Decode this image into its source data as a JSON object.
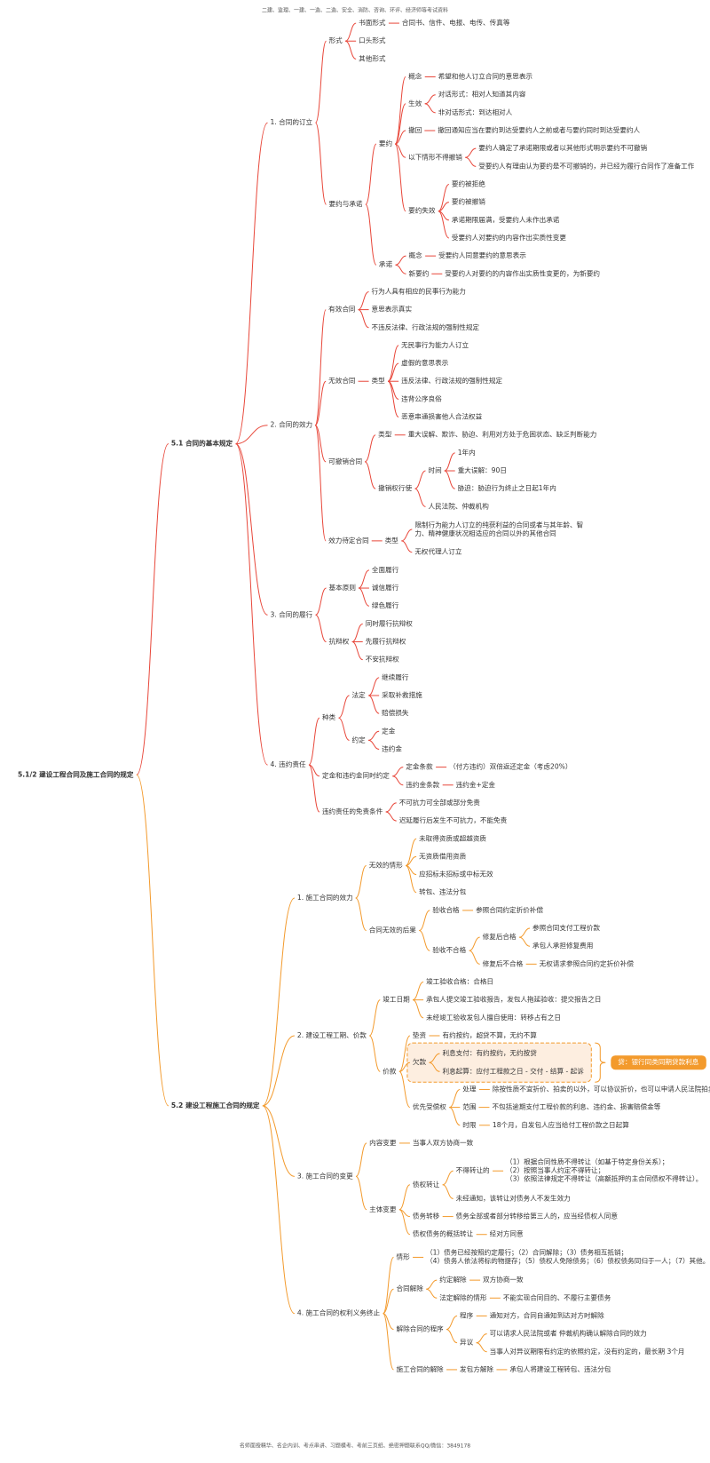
{
  "header": "二建、监理、一建、一造、二造、安全、消防、咨询、环评、经济师等考试资料",
  "footer": "名师面授精华、名企内训、考点串讲、习题模考、考前三页纸、绝密押题联系QQ/微信：3849178",
  "root": {
    "text": "5.1/2 建设工程合同及施工合同的规定",
    "children": [
      {
        "text": "5.1 合同的基本规定",
        "color": "#e8473a",
        "children": [
          {
            "text": "1. 合同的订立",
            "children": [
              {
                "text": "形式",
                "children": [
                  {
                    "text": "书面形式",
                    "children": [
                      {
                        "text": "合同书、信件、电报、电传、传真等"
                      }
                    ]
                  },
                  {
                    "text": "口头形式"
                  },
                  {
                    "text": "其他形式"
                  }
                ]
              },
              {
                "text": "要约与承诺",
                "children": [
                  {
                    "text": "要约",
                    "children": [
                      {
                        "text": "概念",
                        "children": [
                          {
                            "text": "希望和他人订立合同的意思表示"
                          }
                        ]
                      },
                      {
                        "text": "生效",
                        "children": [
                          {
                            "text": "对话形式：相对人知道其内容"
                          },
                          {
                            "text": "非对话形式：到达相对人"
                          }
                        ]
                      },
                      {
                        "text": "撤回",
                        "children": [
                          {
                            "text": "撤回通知应当在要约到达受要约人之前或者与要约同时到达受要约人"
                          }
                        ]
                      },
                      {
                        "text": "以下情形不得撤销",
                        "children": [
                          {
                            "text": "要约人确定了承诺期限或者以其他形式明示要约不可撤销"
                          },
                          {
                            "text": "受要约人有理由认为要约是不可撤销的，并已经为履行合同作了准备工作"
                          }
                        ]
                      },
                      {
                        "text": "要约失效",
                        "children": [
                          {
                            "text": "要约被拒绝"
                          },
                          {
                            "text": "要约被撤销"
                          },
                          {
                            "text": "承诺期限届满，受要约人未作出承诺"
                          },
                          {
                            "text": "受要约人对要约的内容作出实质性变更"
                          }
                        ]
                      }
                    ]
                  },
                  {
                    "text": "承诺",
                    "children": [
                      {
                        "text": "概念",
                        "children": [
                          {
                            "text": "受要约人同意要约的意思表示"
                          }
                        ]
                      },
                      {
                        "text": "新要约",
                        "children": [
                          {
                            "text": "受要约人对要约的内容作出实质性变更的，为新要约"
                          }
                        ]
                      }
                    ]
                  }
                ]
              }
            ]
          },
          {
            "text": "2. 合同的效力",
            "children": [
              {
                "text": "有效合同",
                "children": [
                  {
                    "text": "行为人具有相应的民事行为能力"
                  },
                  {
                    "text": "意思表示真实"
                  },
                  {
                    "text": "不违反法律、行政法规的强制性规定"
                  }
                ]
              },
              {
                "text": "无效合同",
                "children": [
                  {
                    "text": "类型",
                    "children": [
                      {
                        "text": "无民事行为能力人订立"
                      },
                      {
                        "text": "虚假的意思表示"
                      },
                      {
                        "text": "违反法律、行政法规的强制性规定"
                      },
                      {
                        "text": "违背公序良俗"
                      },
                      {
                        "text": "恶意串通损害他人合法权益"
                      }
                    ]
                  }
                ]
              },
              {
                "text": "可撤销合同",
                "children": [
                  {
                    "text": "类型",
                    "children": [
                      {
                        "text": "重大误解、欺诈、胁迫、利用对方处于危困状态、缺乏判断能力"
                      }
                    ]
                  },
                  {
                    "text": "撤销权行使",
                    "children": [
                      {
                        "text": "时间",
                        "children": [
                          {
                            "text": "1年内"
                          },
                          {
                            "text": "重大误解：90日"
                          },
                          {
                            "text": "胁迫：胁迫行为终止之日起1年内"
                          }
                        ]
                      },
                      {
                        "text": "人民法院、仲裁机构"
                      }
                    ]
                  }
                ]
              },
              {
                "text": "效力待定合同",
                "children": [
                  {
                    "text": "类型",
                    "children": [
                      {
                        "text": "限制行为能力人订立的纯获利益的合同或者与其年龄、智\n力、精神健康状况相适应的合同以外的其他合同"
                      },
                      {
                        "text": "无权代理人订立"
                      }
                    ]
                  }
                ]
              }
            ]
          },
          {
            "text": "3. 合同的履行",
            "children": [
              {
                "text": "基本原则",
                "children": [
                  {
                    "text": "全面履行"
                  },
                  {
                    "text": "诚信履行"
                  },
                  {
                    "text": "绿色履行"
                  }
                ]
              },
              {
                "text": "抗辩权",
                "children": [
                  {
                    "text": "同时履行抗辩权"
                  },
                  {
                    "text": "先履行抗辩权"
                  },
                  {
                    "text": "不安抗辩权"
                  }
                ]
              }
            ]
          },
          {
            "text": "4. 违约责任",
            "children": [
              {
                "text": "种类",
                "children": [
                  {
                    "text": "法定",
                    "children": [
                      {
                        "text": "继续履行"
                      },
                      {
                        "text": "采取补救措施"
                      },
                      {
                        "text": "赔偿损失"
                      }
                    ]
                  },
                  {
                    "text": "约定",
                    "children": [
                      {
                        "text": "定金"
                      },
                      {
                        "text": "违约金"
                      }
                    ]
                  }
                ]
              },
              {
                "text": "定金和违约金同时约定",
                "children": [
                  {
                    "text": "定金条款",
                    "children": [
                      {
                        "text": "（付方违约）双倍返还定金（考虑20%）"
                      }
                    ]
                  },
                  {
                    "text": "违约金条款",
                    "children": [
                      {
                        "text": "违约金+定金"
                      }
                    ]
                  }
                ]
              },
              {
                "text": "违约责任的免责条件",
                "children": [
                  {
                    "text": "不可抗力可全部或部分免责"
                  },
                  {
                    "text": "迟延履行后发生不可抗力，不能免责"
                  }
                ]
              }
            ]
          }
        ]
      },
      {
        "text": "5.2 建设工程施工合同的规定",
        "color": "#f39a2c",
        "children": [
          {
            "text": "1. 施工合同的效力",
            "children": [
              {
                "text": "无效的情形",
                "children": [
                  {
                    "text": "未取得资质或超越资质"
                  },
                  {
                    "text": "无资质借用资质"
                  },
                  {
                    "text": "应招标未招标或中标无效"
                  },
                  {
                    "text": "转包、违法分包"
                  }
                ]
              },
              {
                "text": "合同无效的后果",
                "children": [
                  {
                    "text": "验收合格",
                    "children": [
                      {
                        "text": "参照合同约定折价补偿"
                      }
                    ]
                  },
                  {
                    "text": "验收不合格",
                    "children": [
                      {
                        "text": "修复后合格",
                        "children": [
                          {
                            "text": "参照合同支付工程价款"
                          },
                          {
                            "text": "承包人承担修复费用"
                          }
                        ]
                      },
                      {
                        "text": "修复后不合格",
                        "children": [
                          {
                            "text": "无权请求参照合同约定折价补偿"
                          }
                        ]
                      }
                    ]
                  }
                ]
              }
            ]
          },
          {
            "text": "2. 建设工程工期、价款",
            "children": [
              {
                "text": "竣工日期",
                "children": [
                  {
                    "text": "竣工验收合格：合格日"
                  },
                  {
                    "text": "承包人提交竣工验收报告，发包人拖延验收：提交报告之日"
                  },
                  {
                    "text": "未经竣工验收发包人擅自使用：转移占有之日"
                  }
                ]
              },
              {
                "text": "价款",
                "children": [
                  {
                    "text": "垫资",
                    "children": [
                      {
                        "text": "有约按约，超贷不算，无约不算"
                      }
                    ]
                  },
                  {
                    "text": "欠款",
                    "highlight": true,
                    "note": "贷：银行同类同期贷款利息",
                    "children": [
                      {
                        "text": "利息支付：有约按约，无约按贷"
                      },
                      {
                        "text": "利息起算：应付工程款之日 - 交付 - 结算 - 起诉"
                      }
                    ]
                  },
                  {
                    "text": "优先受偿权",
                    "children": [
                      {
                        "text": "处理",
                        "children": [
                          {
                            "text": "除按性质不宜折价、拍卖的以外，可以协议折价，也可以申请人民法院拍卖"
                          }
                        ]
                      },
                      {
                        "text": "范围",
                        "children": [
                          {
                            "text": "不包括逾期支付工程价款的利息、违约金、损害赔偿金等"
                          }
                        ]
                      },
                      {
                        "text": "时限",
                        "children": [
                          {
                            "text": "18个月，自发包人应当给付工程价款之日起算"
                          }
                        ]
                      }
                    ]
                  }
                ]
              }
            ]
          },
          {
            "text": "3. 施工合同的变更",
            "children": [
              {
                "text": "内容变更",
                "children": [
                  {
                    "text": "当事人双方协商一致"
                  }
                ]
              },
              {
                "text": "主体变更",
                "children": [
                  {
                    "text": "债权转让",
                    "children": [
                      {
                        "text": "不得转让的",
                        "children": [
                          {
                            "text": "（1）根据合同性质不得转让（如基于特定身份关系）；\n（2）按照当事人约定不得转让；\n（3）依照法律规定不得转让（高额抵押的主合同债权不得转让）。"
                          }
                        ]
                      },
                      {
                        "text": "未经通知，该转让对债务人不发生效力"
                      }
                    ]
                  },
                  {
                    "text": "债务转移",
                    "children": [
                      {
                        "text": "债务全部或者部分转移给第三人的，应当经债权人同意"
                      }
                    ]
                  },
                  {
                    "text": "债权债务的概括转让",
                    "children": [
                      {
                        "text": "经对方同意"
                      }
                    ]
                  }
                ]
              }
            ]
          },
          {
            "text": "4. 施工合同的权利义务终止",
            "children": [
              {
                "text": "情形",
                "children": [
                  {
                    "text": "（1）债务已经按照约定履行；（2）合同解除；（3）债务相互抵销；\n（4）债务人依法将标的物提存；（5）债权人免除债务；（6）债权债务同归于一人；（7）其他。"
                  }
                ]
              },
              {
                "text": "合同解除",
                "children": [
                  {
                    "text": "约定解除",
                    "children": [
                      {
                        "text": "双方协商一致"
                      }
                    ]
                  },
                  {
                    "text": "法定解除的情形",
                    "children": [
                      {
                        "text": "不能实现合同目的、不履行主要债务"
                      }
                    ]
                  }
                ]
              },
              {
                "text": "解除合同的程序",
                "children": [
                  {
                    "text": "程序",
                    "children": [
                      {
                        "text": "通知对方，合同自通知到达对方时解除"
                      }
                    ]
                  },
                  {
                    "text": "异议",
                    "children": [
                      {
                        "text": "可以请求人民法院或者 仲裁机构确认解除合同的效力"
                      },
                      {
                        "text": "当事人对异议期限有约定的依照约定，没有约定的，最长期 3个月"
                      }
                    ]
                  }
                ]
              },
              {
                "text": "施工合同的解除",
                "children": [
                  {
                    "text": "发包方解除",
                    "children": [
                      {
                        "text": "承包人将建设工程转包、违法分包"
                      }
                    ]
                  }
                ]
              }
            ]
          }
        ]
      }
    ]
  }
}
